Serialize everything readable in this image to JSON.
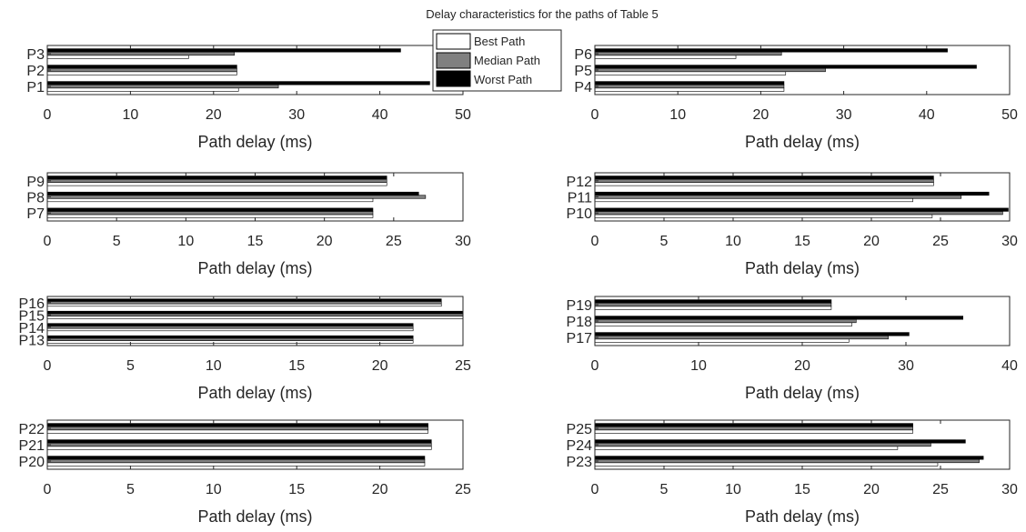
{
  "title": "Delay characteristics for the paths of Table 5",
  "legend": {
    "placement": "top-center",
    "entries": [
      {
        "label": "Best Path",
        "color": "#ffffff"
      },
      {
        "label": "Median Path",
        "color": "#808080"
      },
      {
        "label": "Worst Path",
        "color": "#000000"
      }
    ]
  },
  "chart_data": [
    {
      "type": "bar",
      "orientation": "horizontal",
      "categories": [
        "P1",
        "P2",
        "P3"
      ],
      "xlabel": "Path delay (ms)",
      "xlim": [
        0,
        50
      ],
      "xticks": [
        0,
        10,
        20,
        30,
        40,
        50
      ],
      "series": [
        {
          "name": "Best Path",
          "values": [
            23.0,
            22.8,
            17.0
          ]
        },
        {
          "name": "Median Path",
          "values": [
            27.8,
            22.8,
            22.5
          ]
        },
        {
          "name": "Worst Path",
          "values": [
            46.0,
            22.8,
            42.5
          ]
        }
      ]
    },
    {
      "type": "bar",
      "orientation": "horizontal",
      "categories": [
        "P4",
        "P5",
        "P6"
      ],
      "xlabel": "Path delay (ms)",
      "xlim": [
        0,
        50
      ],
      "xticks": [
        0,
        10,
        20,
        30,
        40,
        50
      ],
      "series": [
        {
          "name": "Best Path",
          "values": [
            22.8,
            23.0,
            17.0
          ]
        },
        {
          "name": "Median Path",
          "values": [
            22.8,
            27.8,
            22.5
          ]
        },
        {
          "name": "Worst Path",
          "values": [
            22.8,
            46.0,
            42.5
          ]
        }
      ]
    },
    {
      "type": "bar",
      "orientation": "horizontal",
      "categories": [
        "P7",
        "P8",
        "P9"
      ],
      "xlabel": "Path delay (ms)",
      "xlim": [
        0,
        30
      ],
      "xticks": [
        0,
        5,
        10,
        15,
        20,
        25,
        30
      ],
      "series": [
        {
          "name": "Best Path",
          "values": [
            23.5,
            23.5,
            24.5
          ]
        },
        {
          "name": "Median Path",
          "values": [
            23.5,
            27.3,
            24.5
          ]
        },
        {
          "name": "Worst Path",
          "values": [
            23.5,
            26.8,
            24.5
          ]
        }
      ]
    },
    {
      "type": "bar",
      "orientation": "horizontal",
      "categories": [
        "P10",
        "P11",
        "P12"
      ],
      "xlabel": "Path delay (ms)",
      "xlim": [
        0,
        30
      ],
      "xticks": [
        0,
        5,
        10,
        15,
        20,
        25,
        30
      ],
      "series": [
        {
          "name": "Best Path",
          "values": [
            24.4,
            23.0,
            24.5
          ]
        },
        {
          "name": "Median Path",
          "values": [
            29.5,
            26.5,
            24.5
          ]
        },
        {
          "name": "Worst Path",
          "values": [
            29.9,
            28.5,
            24.5
          ]
        }
      ]
    },
    {
      "type": "bar",
      "orientation": "horizontal",
      "categories": [
        "P13",
        "P14",
        "P15",
        "P16"
      ],
      "xlabel": "Path delay (ms)",
      "xlim": [
        0,
        25
      ],
      "xticks": [
        0,
        5,
        10,
        15,
        20,
        25
      ],
      "series": [
        {
          "name": "Best Path",
          "values": [
            22.0,
            22.0,
            25.0,
            23.7
          ]
        },
        {
          "name": "Median Path",
          "values": [
            22.0,
            22.0,
            25.0,
            23.7
          ]
        },
        {
          "name": "Worst Path",
          "values": [
            22.0,
            22.0,
            25.0,
            23.7
          ]
        }
      ]
    },
    {
      "type": "bar",
      "orientation": "horizontal",
      "categories": [
        "P17",
        "P18",
        "P19"
      ],
      "xlabel": "Path delay (ms)",
      "xlim": [
        0,
        40
      ],
      "xticks": [
        0,
        10,
        20,
        30,
        40
      ],
      "series": [
        {
          "name": "Best Path",
          "values": [
            24.5,
            24.8,
            22.8
          ]
        },
        {
          "name": "Median Path",
          "values": [
            28.3,
            25.2,
            22.8
          ]
        },
        {
          "name": "Worst Path",
          "values": [
            30.3,
            35.5,
            22.8
          ]
        }
      ]
    },
    {
      "type": "bar",
      "orientation": "horizontal",
      "categories": [
        "P20",
        "P21",
        "P22"
      ],
      "xlabel": "Path delay (ms)",
      "xlim": [
        0,
        25
      ],
      "xticks": [
        0,
        5,
        10,
        15,
        20,
        25
      ],
      "series": [
        {
          "name": "Best Path",
          "values": [
            22.7,
            23.1,
            22.9
          ]
        },
        {
          "name": "Median Path",
          "values": [
            22.7,
            23.1,
            22.9
          ]
        },
        {
          "name": "Worst Path",
          "values": [
            22.7,
            23.1,
            22.9
          ]
        }
      ]
    },
    {
      "type": "bar",
      "orientation": "horizontal",
      "categories": [
        "P23",
        "P24",
        "P25"
      ],
      "xlabel": "Path delay (ms)",
      "xlim": [
        0,
        30
      ],
      "xticks": [
        0,
        5,
        10,
        15,
        20,
        25,
        30
      ],
      "series": [
        {
          "name": "Best Path",
          "values": [
            24.8,
            21.9,
            23.0
          ]
        },
        {
          "name": "Median Path",
          "values": [
            27.8,
            24.3,
            23.0
          ]
        },
        {
          "name": "Worst Path",
          "values": [
            28.1,
            26.8,
            23.0
          ]
        }
      ]
    }
  ]
}
